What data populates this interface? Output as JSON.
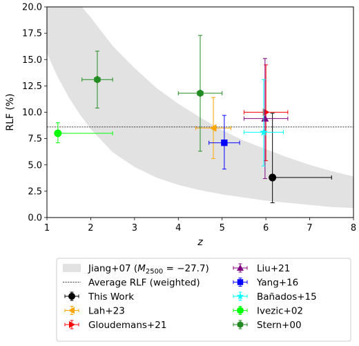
{
  "chart_data": {
    "type": "scatter",
    "xlabel": "z",
    "ylabel": "RLF (%)",
    "xlim": [
      1,
      8
    ],
    "ylim": [
      0,
      20
    ],
    "xticks": [
      1,
      2,
      3,
      4,
      5,
      6,
      7,
      8
    ],
    "yticks": [
      0.0,
      2.5,
      5.0,
      7.5,
      10.0,
      12.5,
      15.0,
      17.5,
      20.0
    ],
    "band": {
      "name": "Jiang+07 (M_2500 = −27.7)",
      "legend_prefix": "Jiang+07 (",
      "legend_math": "M",
      "legend_sub": "2500",
      "legend_suffix": " = −27.7)",
      "color": "#e2e2e2",
      "upper": [
        [
          1.0,
          15.6
        ],
        [
          1.25,
          13.3
        ],
        [
          1.5,
          11.4
        ],
        [
          1.75,
          9.8
        ],
        [
          2.0,
          8.4
        ],
        [
          2.5,
          6.2
        ],
        [
          3.0,
          4.8
        ],
        [
          3.5,
          3.8
        ],
        [
          4.0,
          3.1
        ],
        [
          4.5,
          2.6
        ],
        [
          5.0,
          2.2
        ],
        [
          5.5,
          1.9
        ],
        [
          6.0,
          1.6
        ],
        [
          6.5,
          1.4
        ],
        [
          7.0,
          1.2
        ],
        [
          7.5,
          1.0
        ],
        [
          8.0,
          0.9
        ]
      ],
      "lower": [
        [
          1.0,
          20.0
        ],
        [
          1.5,
          20.0
        ],
        [
          1.8,
          20.0
        ],
        [
          2.0,
          19.0
        ],
        [
          2.5,
          16.3
        ],
        [
          3.0,
          14.2
        ],
        [
          3.5,
          12.3
        ],
        [
          4.0,
          10.8
        ],
        [
          4.5,
          9.5
        ],
        [
          5.0,
          8.3
        ],
        [
          5.5,
          7.3
        ],
        [
          6.0,
          6.5
        ],
        [
          6.5,
          5.7
        ],
        [
          7.0,
          5.0
        ],
        [
          7.5,
          4.4
        ],
        [
          8.0,
          3.9
        ]
      ]
    },
    "average_line": {
      "name": "Average RLF (weighted)",
      "y": 8.6
    },
    "series": [
      {
        "name": "This Work",
        "marker": "circle",
        "color": "#000000",
        "x": 6.15,
        "y": 3.8,
        "xlo": 6.15,
        "xhi": 7.5,
        "ylo": 1.4,
        "yhi": 9.9
      },
      {
        "name": "Lah+23",
        "marker": "triangle-left",
        "color": "#ffa500",
        "x": 4.8,
        "y": 8.5,
        "xlo": 4.4,
        "xhi": 5.2,
        "ylo": 5.6,
        "yhi": 11.4
      },
      {
        "name": "Gloudemans+21",
        "marker": "triangle-right",
        "color": "#ff0000",
        "x": 6.0,
        "y": 10.0,
        "xlo": 5.5,
        "xhi": 6.5,
        "ylo": 5.4,
        "yhi": 14.5
      },
      {
        "name": "Liu+21",
        "marker": "triangle-up",
        "color": "#800080",
        "x": 5.98,
        "y": 9.4,
        "xlo": 5.5,
        "xhi": 6.5,
        "ylo": 3.7,
        "yhi": 15.1
      },
      {
        "name": "Yang+16",
        "marker": "square",
        "color": "#0000ff",
        "x": 5.05,
        "y": 7.1,
        "xlo": 4.7,
        "xhi": 5.4,
        "ylo": 4.6,
        "yhi": 9.7
      },
      {
        "name": "Bañados+15",
        "marker": "star",
        "color": "#00ffff",
        "x": 5.95,
        "y": 8.1,
        "xlo": 5.5,
        "xhi": 6.4,
        "ylo": 4.9,
        "yhi": 13.1
      },
      {
        "name": "Ivezic+02",
        "marker": "circle",
        "color": "#00ff00",
        "x": 1.25,
        "y": 8.0,
        "xlo": 1.25,
        "xhi": 2.5,
        "ylo": 7.1,
        "yhi": 9.0
      },
      {
        "name": "Stern+00",
        "marker": "hexagon",
        "color": "#228b22",
        "x": 2.15,
        "y": 13.1,
        "xlo": 1.8,
        "xhi": 2.5,
        "ylo": 10.4,
        "yhi": 15.8
      },
      {
        "name": "Stern+00",
        "marker": "hexagon",
        "color": "#228b22",
        "x": 4.5,
        "y": 11.8,
        "xlo": 4.0,
        "xhi": 5.0,
        "ylo": 6.3,
        "yhi": 17.3
      }
    ],
    "legend_order_left": [
      "This Work",
      "Lah+23",
      "Gloudemans+21"
    ],
    "legend_order_right": [
      "Liu+21",
      "Yang+16",
      "Bañados+15",
      "Ivezic+02",
      "Stern+00"
    ],
    "grid": false,
    "legend_position": "below"
  }
}
